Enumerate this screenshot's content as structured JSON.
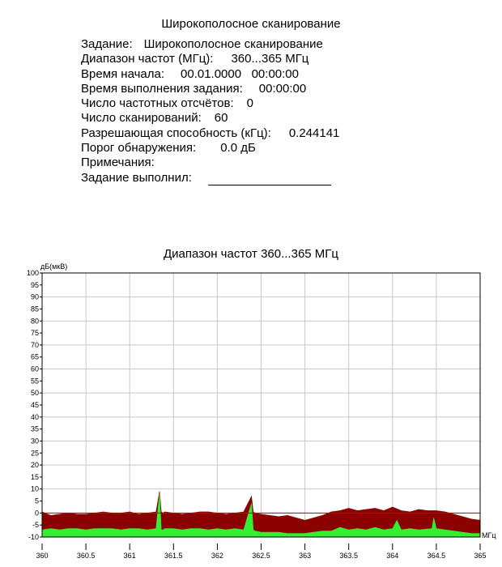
{
  "report": {
    "title": "Широкополосное сканирование",
    "rows": [
      {
        "label": "Задание:",
        "value": "Широкополосное сканирование",
        "gap": 14
      },
      {
        "label": "Диапазон частот (МГц):",
        "value": "360...365 МГц",
        "gap": 22
      },
      {
        "label": "Время начала:",
        "value": "00.01.0000   00:00:00",
        "gap": 20
      },
      {
        "label": "Время выполнения задания:",
        "value": "00:00:00",
        "gap": 20
      },
      {
        "label": "Число частотных отсчётов:",
        "value": "0",
        "gap": 16
      },
      {
        "label": "Число сканирований:",
        "value": "60",
        "gap": 16
      },
      {
        "label": "Разрешающая способность (кГц):",
        "value": "0.244141",
        "gap": 22
      },
      {
        "label": "Порог обнаружения:",
        "value": "0.0 дБ",
        "gap": 30
      },
      {
        "label": "Примечания:",
        "value": "",
        "gap": 0
      },
      {
        "label": "Задание выполнил:",
        "value": "",
        "gap": 20
      }
    ]
  },
  "chart_data": {
    "type": "area",
    "title": "Диапазон частот 360...365 МГц",
    "ylabel": "дБ(мкВ)",
    "xlabel": "МГц",
    "xlim": [
      360,
      365
    ],
    "ylim": [
      -10,
      100
    ],
    "x_ticks": [
      "360",
      "360.5",
      "361",
      "361.5",
      "362",
      "362.5",
      "363",
      "363.5",
      "364",
      "364.5",
      "365"
    ],
    "y_ticks": [
      "100",
      "95",
      "90",
      "85",
      "80",
      "75",
      "70",
      "65",
      "60",
      "55",
      "50",
      "45",
      "40",
      "35",
      "30",
      "25",
      "20",
      "15",
      "10",
      "5",
      "0",
      "-5",
      "-10"
    ],
    "grid": true,
    "threshold_db": 0,
    "colors": {
      "max": "#8b0000",
      "avg": "#33ee33",
      "threshold": "#cc0000",
      "grid": "#c8c8c8"
    },
    "series": [
      {
        "role": "max",
        "x": [
          360.0,
          360.1,
          360.2,
          360.3,
          360.4,
          360.5,
          360.6,
          360.7,
          360.8,
          360.9,
          361.0,
          361.1,
          361.2,
          361.3,
          361.34,
          361.36,
          361.38,
          361.4,
          361.5,
          361.6,
          361.7,
          361.8,
          361.9,
          362.0,
          362.1,
          362.2,
          362.3,
          362.39,
          362.41,
          362.43,
          362.5,
          362.6,
          362.7,
          362.8,
          362.9,
          363.0,
          363.1,
          363.2,
          363.3,
          363.4,
          363.5,
          363.6,
          363.7,
          363.8,
          363.9,
          364.0,
          364.1,
          364.2,
          364.3,
          364.4,
          364.5,
          364.6,
          364.7,
          364.8,
          364.9,
          365.0
        ],
        "y": [
          0.5,
          -1,
          -0.5,
          0,
          -0.5,
          -0.5,
          0,
          0.5,
          0,
          0,
          0.5,
          -0.5,
          0,
          0.5,
          9,
          0.5,
          0,
          0.5,
          0,
          -0.5,
          0,
          0.5,
          0.5,
          0,
          -0.5,
          0,
          0.5,
          7,
          0.5,
          0,
          -0.5,
          -1,
          -1.5,
          -1,
          -2,
          -3,
          -2,
          -1,
          0.5,
          1,
          2,
          1,
          1.5,
          2,
          1,
          2.5,
          1,
          0.5,
          1.5,
          1,
          1,
          0.5,
          -0.5,
          -1.5,
          -2.5,
          -3
        ]
      },
      {
        "role": "avg",
        "x": [
          360.0,
          360.1,
          360.2,
          360.3,
          360.4,
          360.5,
          360.6,
          360.7,
          360.8,
          360.9,
          361.0,
          361.1,
          361.2,
          361.3,
          361.34,
          361.36,
          361.38,
          361.4,
          361.5,
          361.6,
          361.7,
          361.8,
          361.9,
          362.0,
          362.1,
          362.2,
          362.3,
          362.39,
          362.41,
          362.43,
          362.5,
          362.6,
          362.7,
          362.8,
          362.9,
          363.0,
          363.1,
          363.2,
          363.3,
          363.4,
          363.5,
          363.6,
          363.7,
          363.8,
          363.9,
          364.0,
          364.05,
          364.1,
          364.2,
          364.3,
          364.45,
          364.47,
          364.5,
          364.6,
          364.7,
          364.8,
          364.9,
          365.0
        ],
        "y": [
          -7,
          -6.5,
          -7,
          -6.5,
          -6.5,
          -7,
          -6.5,
          -6.5,
          -6.5,
          -7,
          -6.5,
          -6.5,
          -7,
          -6.5,
          8,
          -7,
          -7,
          -6.5,
          -6.5,
          -7,
          -6.5,
          -6.5,
          -7,
          -6.5,
          -7,
          -6.5,
          -7,
          4,
          -7,
          -7.5,
          -8,
          -8,
          -8,
          -8.5,
          -8.5,
          -8.5,
          -8,
          -7.5,
          -7.5,
          -6,
          -7,
          -6.5,
          -7,
          -6,
          -7,
          -6.5,
          -3,
          -7,
          -6.5,
          -7,
          -6.5,
          -2,
          -6.5,
          -7,
          -7.5,
          -8,
          -8.5,
          -8.5
        ]
      }
    ]
  }
}
